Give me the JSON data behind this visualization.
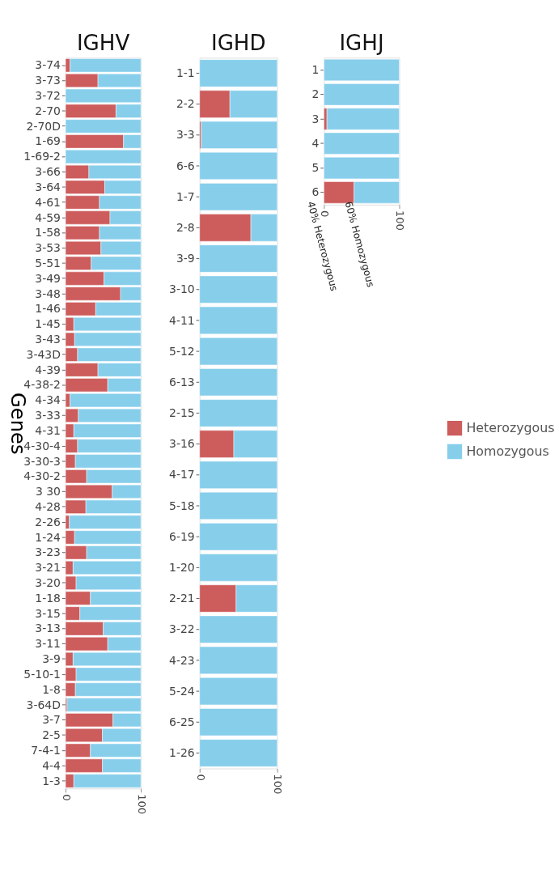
{
  "chart_data": [
    {
      "type": "bar",
      "title": "IGHV",
      "ylabel": "Genes",
      "orientation": "horizontal",
      "stacked": true,
      "legend": "right",
      "grid": false,
      "categories": [
        "3-74",
        "3-73",
        "3-72",
        "2-70",
        "2-70D",
        "1-69",
        "1-69-2",
        "3-66",
        "3-64",
        "4-61",
        "4-59",
        "1-58",
        "3-53",
        "5-51",
        "3-49",
        "3-48",
        "1-46",
        "1-45",
        "3-43",
        "3-43D",
        "4-39",
        "4-38-2",
        "4-34",
        "3-33",
        "4-31",
        "4-30-4",
        "3-30-3",
        "4-30-2",
        "3 30",
        "4-28",
        "2-26",
        "1-24",
        "3-23",
        "3-21",
        "3-20",
        "1-18",
        "3-15",
        "3-13",
        "3-11",
        "3-9",
        "5-10-1",
        "1-8",
        "3-64D",
        "3-7",
        "2-5",
        "7-4-1",
        "4-4",
        "1-3"
      ],
      "series": [
        {
          "name": "Heterozygous",
          "color": "#cd5c5c",
          "values": [
            6,
            43,
            0,
            67,
            0,
            77,
            0,
            31,
            52,
            45,
            59,
            45,
            47,
            34,
            51,
            73,
            40,
            11,
            12,
            16,
            43,
            56,
            6,
            17,
            11,
            16,
            13,
            28,
            62,
            27,
            5,
            12,
            28,
            10,
            14,
            33,
            19,
            50,
            56,
            10,
            14,
            13,
            2,
            63,
            49,
            33,
            49,
            11
          ]
        },
        {
          "name": "Homozygous",
          "color": "#87ceeb",
          "values": [
            94,
            57,
            100,
            33,
            100,
            23,
            100,
            69,
            48,
            55,
            41,
            55,
            53,
            66,
            49,
            27,
            60,
            89,
            88,
            84,
            57,
            44,
            94,
            83,
            89,
            84,
            87,
            72,
            38,
            73,
            95,
            88,
            72,
            90,
            86,
            67,
            81,
            50,
            44,
            90,
            86,
            87,
            98,
            37,
            51,
            67,
            51,
            89
          ]
        }
      ],
      "xlim": [
        0,
        100
      ],
      "xticks": [
        0,
        100
      ]
    },
    {
      "type": "bar",
      "title": "IGHD",
      "orientation": "horizontal",
      "stacked": true,
      "legend": "right",
      "grid": false,
      "categories": [
        "1-1",
        "2-2",
        "3-3",
        "6-6",
        "1-7",
        "2-8",
        "3-9",
        "3-10",
        "4-11",
        "5-12",
        "6-13",
        "2-15",
        "3-16",
        "4-17",
        "5-18",
        "6-19",
        "1-20",
        "2-21",
        "3-22",
        "4-23",
        "5-24",
        "6-25",
        "1-26"
      ],
      "series": [
        {
          "name": "Heterozygous",
          "color": "#cd5c5c",
          "values": [
            0,
            39,
            2,
            0,
            0,
            66,
            0,
            0,
            0,
            0,
            0,
            0,
            44,
            0,
            0,
            0,
            0,
            47,
            0,
            0,
            0,
            0,
            0
          ]
        },
        {
          "name": "Homozygous",
          "color": "#87ceeb",
          "values": [
            100,
            61,
            98,
            100,
            100,
            34,
            100,
            100,
            100,
            100,
            100,
            100,
            56,
            100,
            100,
            100,
            100,
            53,
            100,
            100,
            100,
            100,
            100
          ]
        }
      ],
      "xlim": [
        0,
        100
      ],
      "xticks": [
        0,
        100
      ]
    },
    {
      "type": "bar",
      "title": "IGHJ",
      "orientation": "horizontal",
      "stacked": true,
      "legend": "right",
      "grid": false,
      "categories": [
        "1",
        "2",
        "3",
        "4",
        "5",
        "6"
      ],
      "series": [
        {
          "name": "Heterozygous",
          "color": "#cd5c5c",
          "values": [
            0,
            0,
            4,
            0,
            0,
            40
          ]
        },
        {
          "name": "Homozygous",
          "color": "#87ceeb",
          "values": [
            100,
            100,
            96,
            100,
            100,
            60
          ]
        }
      ],
      "annotations": [
        {
          "text": "40% Heterozygous",
          "x": 20,
          "y": "6"
        },
        {
          "text": "60% Homozygous",
          "x": 70,
          "y": "6"
        }
      ],
      "xlim": [
        0,
        100
      ],
      "xticks": [
        0,
        100
      ]
    }
  ]
}
